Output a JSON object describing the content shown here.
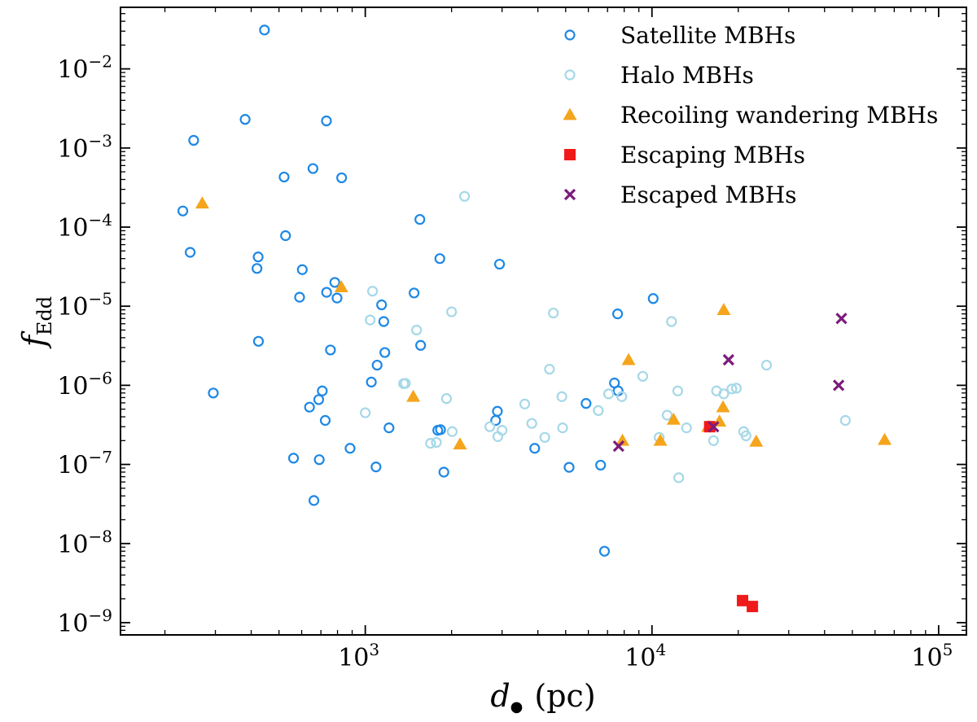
{
  "chart_data": {
    "type": "scatter",
    "xscale": "log",
    "yscale": "log",
    "xlim": [
      140,
      125000
    ],
    "ylim": [
      7e-10,
      0.06
    ],
    "xlabel": {
      "main": "d",
      "symbol": "●",
      "unit": "(pc)"
    },
    "ylabel": {
      "main": "f",
      "sub": "Edd"
    },
    "x_ticks": [
      {
        "value": 1000,
        "base": "10",
        "exp": "3"
      },
      {
        "value": 10000,
        "base": "10",
        "exp": "4"
      },
      {
        "value": 100000,
        "base": "10",
        "exp": "5"
      }
    ],
    "y_ticks": [
      {
        "value": 1e-09,
        "base": "10",
        "exp": "−9"
      },
      {
        "value": 1e-08,
        "base": "10",
        "exp": "−8"
      },
      {
        "value": 1e-07,
        "base": "10",
        "exp": "−7"
      },
      {
        "value": 1e-06,
        "base": "10",
        "exp": "−6"
      },
      {
        "value": 1e-05,
        "base": "10",
        "exp": "−5"
      },
      {
        "value": 0.0001,
        "base": "10",
        "exp": "−4"
      },
      {
        "value": 0.001,
        "base": "10",
        "exp": "−3"
      },
      {
        "value": 0.01,
        "base": "10",
        "exp": "−2"
      }
    ],
    "legend_position": "top-right",
    "series": [
      {
        "name": "Satellite MBHs",
        "marker": "circle-open",
        "color": "#1e88e5",
        "points": [
          [
            231,
            0.00016
          ],
          [
            245,
            4.8e-05
          ],
          [
            252,
            0.00125
          ],
          [
            295,
            8e-07
          ],
          [
            381,
            0.0023
          ],
          [
            419,
            3e-05
          ],
          [
            423,
            4.2e-05
          ],
          [
            424,
            3.6e-06
          ],
          [
            445,
            0.031
          ],
          [
            521,
            0.00043
          ],
          [
            527,
            7.8e-05
          ],
          [
            562,
            1.2e-07
          ],
          [
            590,
            1.3e-05
          ],
          [
            603,
            2.9e-05
          ],
          [
            639,
            5.3e-07
          ],
          [
            657,
            0.00055
          ],
          [
            662,
            3.5e-08
          ],
          [
            688,
            6.6e-07
          ],
          [
            691,
            1.15e-07
          ],
          [
            708,
            8.5e-07
          ],
          [
            725,
            3.6e-07
          ],
          [
            732,
            0.0022
          ],
          [
            733,
            1.5e-05
          ],
          [
            756,
            2.8e-06
          ],
          [
            783,
            2e-05
          ],
          [
            797,
            1.27e-05
          ],
          [
            827,
            0.00042
          ],
          [
            885,
            1.6e-07
          ],
          [
            1050,
            1.1e-06
          ],
          [
            1090,
            9.3e-08
          ],
          [
            1100,
            1.8e-06
          ],
          [
            1140,
            1.04e-05
          ],
          [
            1160,
            6.4e-06
          ],
          [
            1170,
            2.6e-06
          ],
          [
            1210,
            2.9e-07
          ],
          [
            1480,
            1.47e-05
          ],
          [
            1550,
            0.000125
          ],
          [
            1560,
            3.2e-06
          ],
          [
            1790,
            2.7e-07
          ],
          [
            1820,
            4e-05
          ],
          [
            1830,
            2.75e-07
          ],
          [
            1880,
            8e-08
          ],
          [
            2850,
            3.6e-07
          ],
          [
            2890,
            4.7e-07
          ],
          [
            2940,
            3.4e-05
          ],
          [
            3900,
            1.6e-07
          ],
          [
            5140,
            9.2e-08
          ],
          [
            5890,
            5.9e-07
          ],
          [
            6620,
            9.8e-08
          ],
          [
            6830,
            8e-09
          ],
          [
            7400,
            1.07e-06
          ],
          [
            7590,
            8e-06
          ],
          [
            7620,
            8.5e-07
          ],
          [
            10100,
            1.25e-05
          ]
        ]
      },
      {
        "name": "Halo MBHs",
        "marker": "circle-open",
        "color": "#a6d8e8",
        "points": [
          [
            1000,
            4.5e-07
          ],
          [
            1040,
            6.7e-06
          ],
          [
            1060,
            1.55e-05
          ],
          [
            1360,
            1.05e-06
          ],
          [
            1380,
            1.06e-06
          ],
          [
            1510,
            5e-06
          ],
          [
            1690,
            1.85e-07
          ],
          [
            1770,
            1.9e-07
          ],
          [
            1920,
            6.8e-07
          ],
          [
            2000,
            8.5e-06
          ],
          [
            2010,
            2.6e-07
          ],
          [
            2220,
            0.000245
          ],
          [
            2720,
            3e-07
          ],
          [
            2900,
            2.25e-07
          ],
          [
            3000,
            2.7e-07
          ],
          [
            3600,
            5.8e-07
          ],
          [
            3810,
            3.3e-07
          ],
          [
            4230,
            2.2e-07
          ],
          [
            4390,
            1.6e-06
          ],
          [
            4530,
            8.2e-06
          ],
          [
            4850,
            7.2e-07
          ],
          [
            4880,
            2.9e-07
          ],
          [
            6500,
            4.8e-07
          ],
          [
            7060,
            7.8e-07
          ],
          [
            7850,
            7.2e-07
          ],
          [
            9290,
            1.3e-06
          ],
          [
            10600,
            2.2e-07
          ],
          [
            11300,
            4.2e-07
          ],
          [
            11700,
            6.4e-06
          ],
          [
            12300,
            8.5e-07
          ],
          [
            12400,
            6.8e-08
          ],
          [
            13200,
            2.9e-07
          ],
          [
            16400,
            2e-07
          ],
          [
            16800,
            8.5e-07
          ],
          [
            17800,
            7.8e-07
          ],
          [
            19000,
            9e-07
          ],
          [
            19700,
            9.2e-07
          ],
          [
            20900,
            2.6e-07
          ],
          [
            21300,
            2.3e-07
          ],
          [
            25100,
            1.8e-06
          ],
          [
            47300,
            3.6e-07
          ]
        ]
      },
      {
        "name": "Recoiling wandering MBHs",
        "marker": "triangle",
        "color": "#f5a51c",
        "points": [
          [
            270,
            0.0002
          ],
          [
            825,
            1.75e-05
          ],
          [
            1470,
            7.2e-07
          ],
          [
            2140,
            1.8e-07
          ],
          [
            7890,
            2e-07
          ],
          [
            8290,
            2.1e-06
          ],
          [
            10700,
            2e-07
          ],
          [
            11900,
            3.7e-07
          ],
          [
            15700,
            3e-07
          ],
          [
            17200,
            3.5e-07
          ],
          [
            17700,
            5.3e-07
          ],
          [
            17800,
            9e-06
          ],
          [
            23100,
            1.95e-07
          ],
          [
            64800,
            2.05e-07
          ]
        ]
      },
      {
        "name": "Escaping MBHs",
        "marker": "square",
        "color": "#f01a1a",
        "points": [
          [
            15900,
            3e-07
          ],
          [
            20700,
            1.9e-09
          ],
          [
            22400,
            1.6e-09
          ]
        ]
      },
      {
        "name": "Escaped MBHs",
        "marker": "x",
        "color": "#7b1c7b",
        "points": [
          [
            7650,
            1.7e-07
          ],
          [
            16400,
            3e-07
          ],
          [
            18500,
            2.1e-06
          ],
          [
            44800,
            1e-06
          ],
          [
            45800,
            7e-06
          ]
        ]
      }
    ]
  }
}
